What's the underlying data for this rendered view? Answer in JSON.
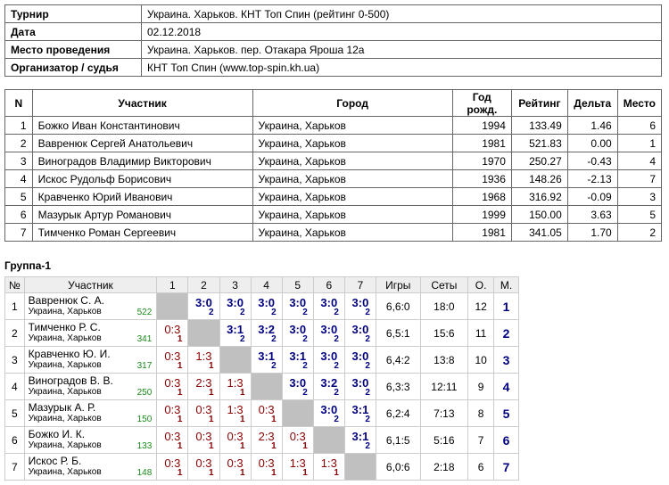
{
  "info": {
    "rows": [
      [
        "Турнир",
        "Украина. Харьков. КНТ Топ Спин (рейтинг 0-500)"
      ],
      [
        "Дата",
        "02.12.2018"
      ],
      [
        "Место проведения",
        "Украина. Харьков. пер. Отакара Яроша 12а"
      ],
      [
        "Организатор / судья",
        "КНТ Топ Спин (www.top-spin.kh.ua)"
      ]
    ]
  },
  "participants": {
    "header": [
      "N",
      "Участник",
      "Город",
      "Год рожд.",
      "Рейтинг",
      "Дельта",
      "Место"
    ],
    "rows": [
      [
        "1",
        "Божко Иван Константинович",
        "Украина, Харьков",
        "1994",
        "133.49",
        "1.46",
        "6"
      ],
      [
        "2",
        "Вавренюк Сергей Анатольевич",
        "Украина, Харьков",
        "1981",
        "521.83",
        "0.00",
        "1"
      ],
      [
        "3",
        "Виноградов Владимир Викторович",
        "Украина, Харьков",
        "1970",
        "250.27",
        "-0.43",
        "4"
      ],
      [
        "4",
        "Искос Рудольф Борисович",
        "Украина, Харьков",
        "1936",
        "148.26",
        "-2.13",
        "7"
      ],
      [
        "5",
        "Кравченко Юрий Иванович",
        "Украина, Харьков",
        "1968",
        "316.92",
        "-0.09",
        "3"
      ],
      [
        "6",
        "Мазурык Артур Романович",
        "Украина, Харьков",
        "1999",
        "150.00",
        "3.63",
        "5"
      ],
      [
        "7",
        "Тимченко Роман Сергеевич",
        "Украина, Харьков",
        "1981",
        "341.05",
        "1.70",
        "2"
      ]
    ]
  },
  "group": {
    "title": "Группа-1",
    "header": [
      "№",
      "Участник",
      "1",
      "2",
      "3",
      "4",
      "5",
      "6",
      "7",
      "Игры",
      "Сеты",
      "О.",
      "М."
    ],
    "rows": [
      {
        "num": "1",
        "name": "Вавренюк С. А.",
        "city": "Украина, Харьков",
        "rating": "522",
        "cells": [
          null,
          {
            "score": "3:0",
            "points": "2"
          },
          {
            "score": "3:0",
            "points": "2"
          },
          {
            "score": "3:0",
            "points": "2"
          },
          {
            "score": "3:0",
            "points": "2"
          },
          {
            "score": "3:0",
            "points": "2"
          },
          {
            "score": "3:0",
            "points": "2"
          }
        ],
        "games": "6,6:0",
        "sets": "18:0",
        "points": "12",
        "place": "1"
      },
      {
        "num": "2",
        "name": "Тимченко Р. С.",
        "city": "Украина, Харьков",
        "rating": "341",
        "cells": [
          {
            "score": "0:3",
            "points": "1"
          },
          null,
          {
            "score": "3:1",
            "points": "2"
          },
          {
            "score": "3:2",
            "points": "2"
          },
          {
            "score": "3:0",
            "points": "2"
          },
          {
            "score": "3:0",
            "points": "2"
          },
          {
            "score": "3:0",
            "points": "2"
          }
        ],
        "games": "6,5:1",
        "sets": "15:6",
        "points": "11",
        "place": "2"
      },
      {
        "num": "3",
        "name": "Кравченко Ю. И.",
        "city": "Украина, Харьков",
        "rating": "317",
        "cells": [
          {
            "score": "0:3",
            "points": "1"
          },
          {
            "score": "1:3",
            "points": "1"
          },
          null,
          {
            "score": "3:1",
            "points": "2"
          },
          {
            "score": "3:1",
            "points": "2"
          },
          {
            "score": "3:0",
            "points": "2"
          },
          {
            "score": "3:0",
            "points": "2"
          }
        ],
        "games": "6,4:2",
        "sets": "13:8",
        "points": "10",
        "place": "3"
      },
      {
        "num": "4",
        "name": "Виноградов В. В.",
        "city": "Украина, Харьков",
        "rating": "250",
        "cells": [
          {
            "score": "0:3",
            "points": "1"
          },
          {
            "score": "2:3",
            "points": "1"
          },
          {
            "score": "1:3",
            "points": "1"
          },
          null,
          {
            "score": "3:0",
            "points": "2"
          },
          {
            "score": "3:2",
            "points": "2"
          },
          {
            "score": "3:0",
            "points": "2"
          }
        ],
        "games": "6,3:3",
        "sets": "12:11",
        "points": "9",
        "place": "4"
      },
      {
        "num": "5",
        "name": "Мазурык А. Р.",
        "city": "Украина, Харьков",
        "rating": "150",
        "cells": [
          {
            "score": "0:3",
            "points": "1"
          },
          {
            "score": "0:3",
            "points": "1"
          },
          {
            "score": "1:3",
            "points": "1"
          },
          {
            "score": "0:3",
            "points": "1"
          },
          null,
          {
            "score": "3:0",
            "points": "2"
          },
          {
            "score": "3:1",
            "points": "2"
          }
        ],
        "games": "6,2:4",
        "sets": "7:13",
        "points": "8",
        "place": "5"
      },
      {
        "num": "6",
        "name": "Божко И. К.",
        "city": "Украина, Харьков",
        "rating": "133",
        "cells": [
          {
            "score": "0:3",
            "points": "1"
          },
          {
            "score": "0:3",
            "points": "1"
          },
          {
            "score": "0:3",
            "points": "1"
          },
          {
            "score": "2:3",
            "points": "1"
          },
          {
            "score": "0:3",
            "points": "1"
          },
          null,
          {
            "score": "3:1",
            "points": "2"
          }
        ],
        "games": "6,1:5",
        "sets": "5:16",
        "points": "7",
        "place": "6"
      },
      {
        "num": "7",
        "name": "Искос Р. Б.",
        "city": "Украина, Харьков",
        "rating": "148",
        "cells": [
          {
            "score": "0:3",
            "points": "1"
          },
          {
            "score": "0:3",
            "points": "1"
          },
          {
            "score": "0:3",
            "points": "1"
          },
          {
            "score": "0:3",
            "points": "1"
          },
          {
            "score": "1:3",
            "points": "1"
          },
          {
            "score": "1:3",
            "points": "1"
          },
          null
        ],
        "games": "6,0:6",
        "sets": "2:18",
        "points": "6",
        "place": "7"
      }
    ]
  }
}
